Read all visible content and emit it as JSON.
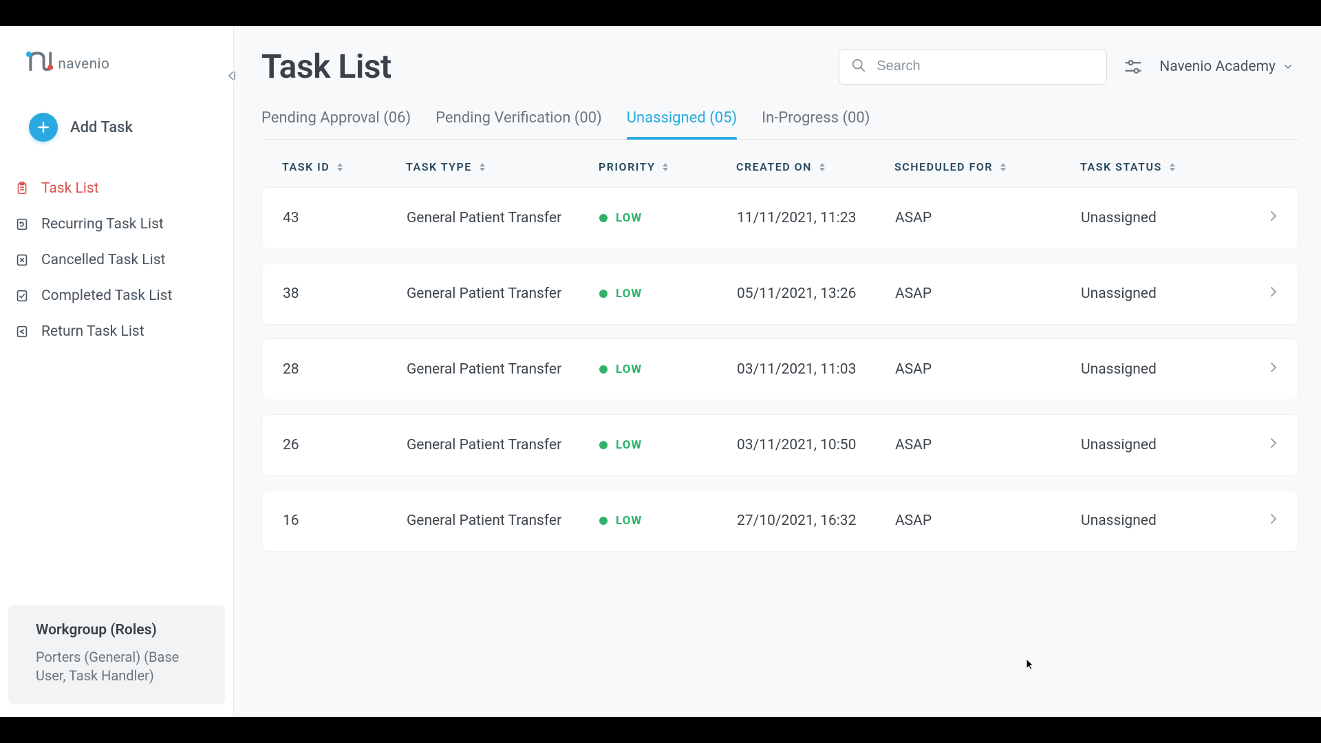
{
  "brand": {
    "name": "navenio"
  },
  "sidebar": {
    "add_task_label": "Add Task",
    "nav": [
      {
        "label": "Task List",
        "icon": "clipboard",
        "active": true
      },
      {
        "label": "Recurring Task List",
        "icon": "refresh",
        "active": false
      },
      {
        "label": "Cancelled Task List",
        "icon": "cancel",
        "active": false
      },
      {
        "label": "Completed Task List",
        "icon": "check",
        "active": false
      },
      {
        "label": "Return Task List",
        "icon": "return",
        "active": false
      }
    ],
    "workgroup": {
      "title": "Workgroup (Roles)",
      "desc": "Porters (General) (Base User, Task Handler)"
    }
  },
  "header": {
    "title": "Task List",
    "search_placeholder": "Search",
    "account_label": "Navenio Academy"
  },
  "tabs": [
    {
      "label": "Pending Approval (06)",
      "active": false
    },
    {
      "label": "Pending Verification (00)",
      "active": false
    },
    {
      "label": "Unassigned (05)",
      "active": true
    },
    {
      "label": "In-Progress (00)",
      "active": false
    }
  ],
  "columns": [
    {
      "label": "TASK ID"
    },
    {
      "label": "TASK TYPE"
    },
    {
      "label": "PRIORITY"
    },
    {
      "label": "CREATED ON"
    },
    {
      "label": "SCHEDULED FOR"
    },
    {
      "label": "TASK STATUS"
    }
  ],
  "priority_colors": {
    "LOW": "#2fb36a"
  },
  "rows": [
    {
      "id": "43",
      "type": "General Patient Transfer",
      "priority": "LOW",
      "created": "11/11/2021, 11:23",
      "scheduled": "ASAP",
      "status": "Unassigned"
    },
    {
      "id": "38",
      "type": "General Patient Transfer",
      "priority": "LOW",
      "created": "05/11/2021, 13:26",
      "scheduled": "ASAP",
      "status": "Unassigned"
    },
    {
      "id": "28",
      "type": "General Patient Transfer",
      "priority": "LOW",
      "created": "03/11/2021, 11:03",
      "scheduled": "ASAP",
      "status": "Unassigned"
    },
    {
      "id": "26",
      "type": "General Patient Transfer",
      "priority": "LOW",
      "created": "03/11/2021, 10:50",
      "scheduled": "ASAP",
      "status": "Unassigned"
    },
    {
      "id": "16",
      "type": "General Patient Transfer",
      "priority": "LOW",
      "created": "27/10/2021, 16:32",
      "scheduled": "ASAP",
      "status": "Unassigned"
    }
  ],
  "colors": {
    "accent": "#2aa9e0",
    "danger": "#d9534f",
    "text": "#3e464e",
    "muted": "#6d7780",
    "border": "#e6e9eb",
    "bg": "#f7f9fa"
  }
}
